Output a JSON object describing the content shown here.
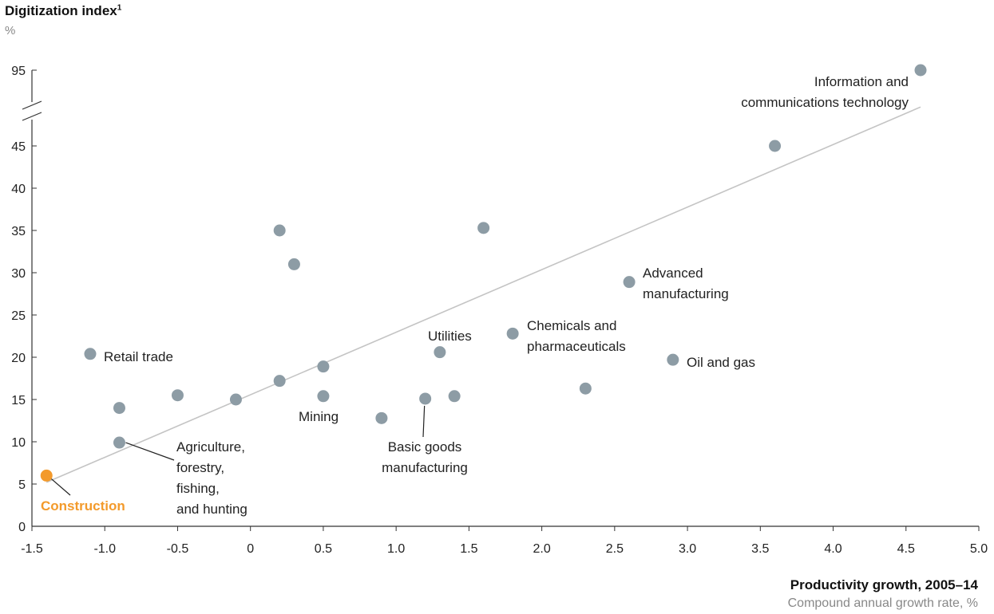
{
  "chart_data": {
    "type": "scatter",
    "title": "",
    "ylabel": "Digitization index",
    "ylabel_superscript": "1",
    "ylabel_unit": "%",
    "xlabel": "Productivity growth, 2005–14",
    "xlabel_sub": "Compound annual growth rate, %",
    "xlim": [
      -1.5,
      5.0
    ],
    "ylim": [
      0,
      95
    ],
    "y_axis_break": [
      47,
      93
    ],
    "x_ticks": [
      "-1.5",
      "-1.0",
      "-0.5",
      "0",
      "0.5",
      "1.0",
      "1.5",
      "2.0",
      "2.5",
      "3.0",
      "3.5",
      "4.0",
      "4.5",
      "5.0"
    ],
    "x_tick_values": [
      -1.5,
      -1.0,
      -0.5,
      0,
      0.5,
      1.0,
      1.5,
      2.0,
      2.5,
      3.0,
      3.5,
      4.0,
      4.5,
      5.0
    ],
    "y_ticks": [
      "0",
      "5",
      "10",
      "15",
      "20",
      "25",
      "30",
      "35",
      "40",
      "45",
      "95"
    ],
    "y_tick_values": [
      0,
      5,
      10,
      15,
      20,
      25,
      30,
      35,
      40,
      45,
      95
    ],
    "trendline": {
      "x": [
        -1.4,
        4.6
      ],
      "y": [
        5.2,
        48.8
      ]
    },
    "points": [
      {
        "x": -1.4,
        "y": 6.0,
        "highlight": true
      },
      {
        "x": -1.1,
        "y": 20.4
      },
      {
        "x": -0.9,
        "y": 14.0
      },
      {
        "x": -0.9,
        "y": 9.9
      },
      {
        "x": -0.5,
        "y": 15.5
      },
      {
        "x": -0.1,
        "y": 15.0
      },
      {
        "x": 0.2,
        "y": 35.0
      },
      {
        "x": 0.2,
        "y": 17.2
      },
      {
        "x": 0.3,
        "y": 31.0
      },
      {
        "x": 0.5,
        "y": 18.9
      },
      {
        "x": 0.5,
        "y": 15.4
      },
      {
        "x": 0.9,
        "y": 12.8
      },
      {
        "x": 1.2,
        "y": 15.1
      },
      {
        "x": 1.3,
        "y": 20.6
      },
      {
        "x": 1.4,
        "y": 15.4
      },
      {
        "x": 1.6,
        "y": 35.3
      },
      {
        "x": 1.8,
        "y": 22.8
      },
      {
        "x": 2.3,
        "y": 16.3
      },
      {
        "x": 2.6,
        "y": 28.9
      },
      {
        "x": 2.9,
        "y": 19.7
      },
      {
        "x": 3.6,
        "y": 45.0
      },
      {
        "x": 4.6,
        "y": 95.0
      }
    ],
    "annotations": [
      {
        "lines": [
          "Information and",
          "communications technology"
        ]
      },
      {
        "lines": [
          "Advanced",
          "manufacturing"
        ]
      },
      {
        "lines": [
          "Chemicals and",
          "pharmaceuticals"
        ]
      },
      {
        "lines": [
          "Oil and gas"
        ]
      },
      {
        "lines": [
          "Utilities"
        ]
      },
      {
        "lines": [
          "Retail trade"
        ]
      },
      {
        "lines": [
          "Mining"
        ]
      },
      {
        "lines": [
          "Basic goods",
          "manufacturing"
        ]
      },
      {
        "lines": [
          "Agriculture,",
          "forestry,",
          "fishing,",
          "and hunting"
        ]
      },
      {
        "lines": [
          "Construction"
        ],
        "highlight": true
      }
    ],
    "colors": {
      "point": "#8d9ca5",
      "highlight": "#f39a2b",
      "trendline": "#c4c4c4",
      "axis": "#333333"
    }
  }
}
